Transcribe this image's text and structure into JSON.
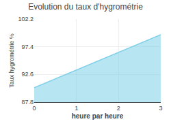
{
  "chart_data": {
    "type": "area",
    "title": "Evolution du taux d'hygrométrie",
    "xlabel": "heure par heure",
    "ylabel": "Taux hygrométrie %",
    "x": [
      0,
      3
    ],
    "values": [
      90.3,
      99.5
    ],
    "baseline": 87.8,
    "color": "#7ecfe8",
    "xlim": [
      0,
      3
    ],
    "xticks": [
      0,
      1,
      2,
      3
    ],
    "ylim": [
      87.8,
      102.2
    ],
    "yticks": [
      87.8,
      92.6,
      97.4,
      102.2
    ],
    "grid": true
  }
}
